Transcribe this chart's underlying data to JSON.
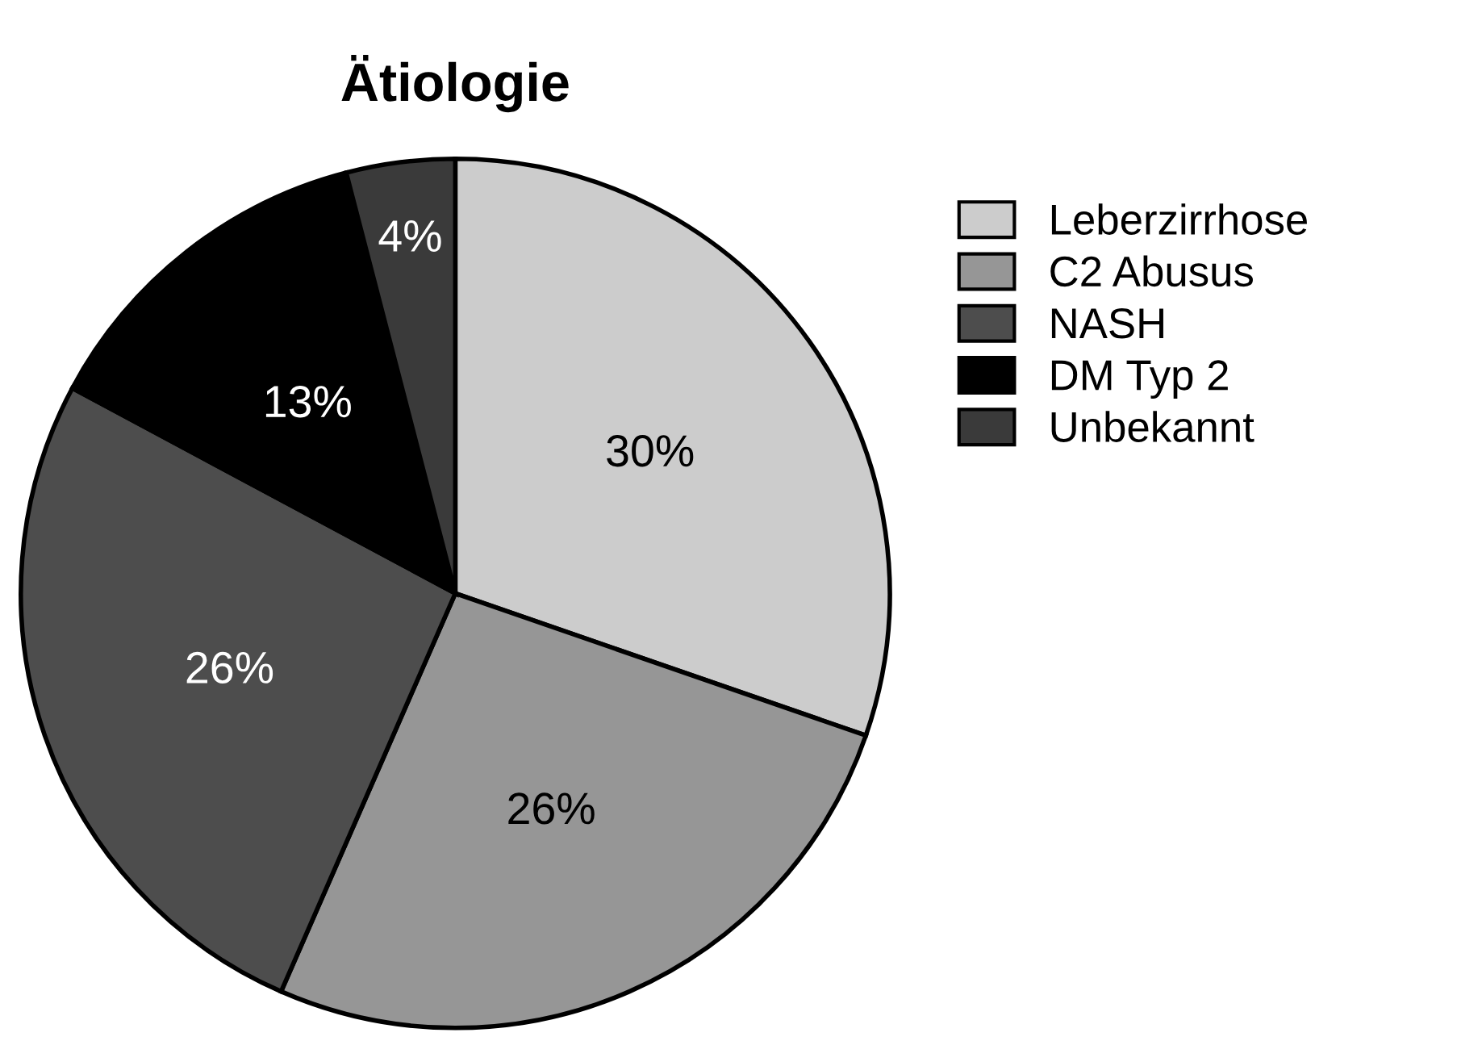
{
  "chart_data": {
    "type": "pie",
    "title": "Ätiologie",
    "categories": [
      "Leberzirrhose",
      "C2 Abusus",
      "NASH",
      "DM Typ 2",
      "Unbekannt"
    ],
    "values": [
      30,
      26,
      26,
      13,
      4
    ],
    "colors": [
      "#cccccc",
      "#969696",
      "#4d4d4d",
      "#000000",
      "#3a3a3a"
    ],
    "value_labels": [
      "30%",
      "26%",
      "26%",
      "13%",
      "4%"
    ],
    "legend": "top right"
  }
}
